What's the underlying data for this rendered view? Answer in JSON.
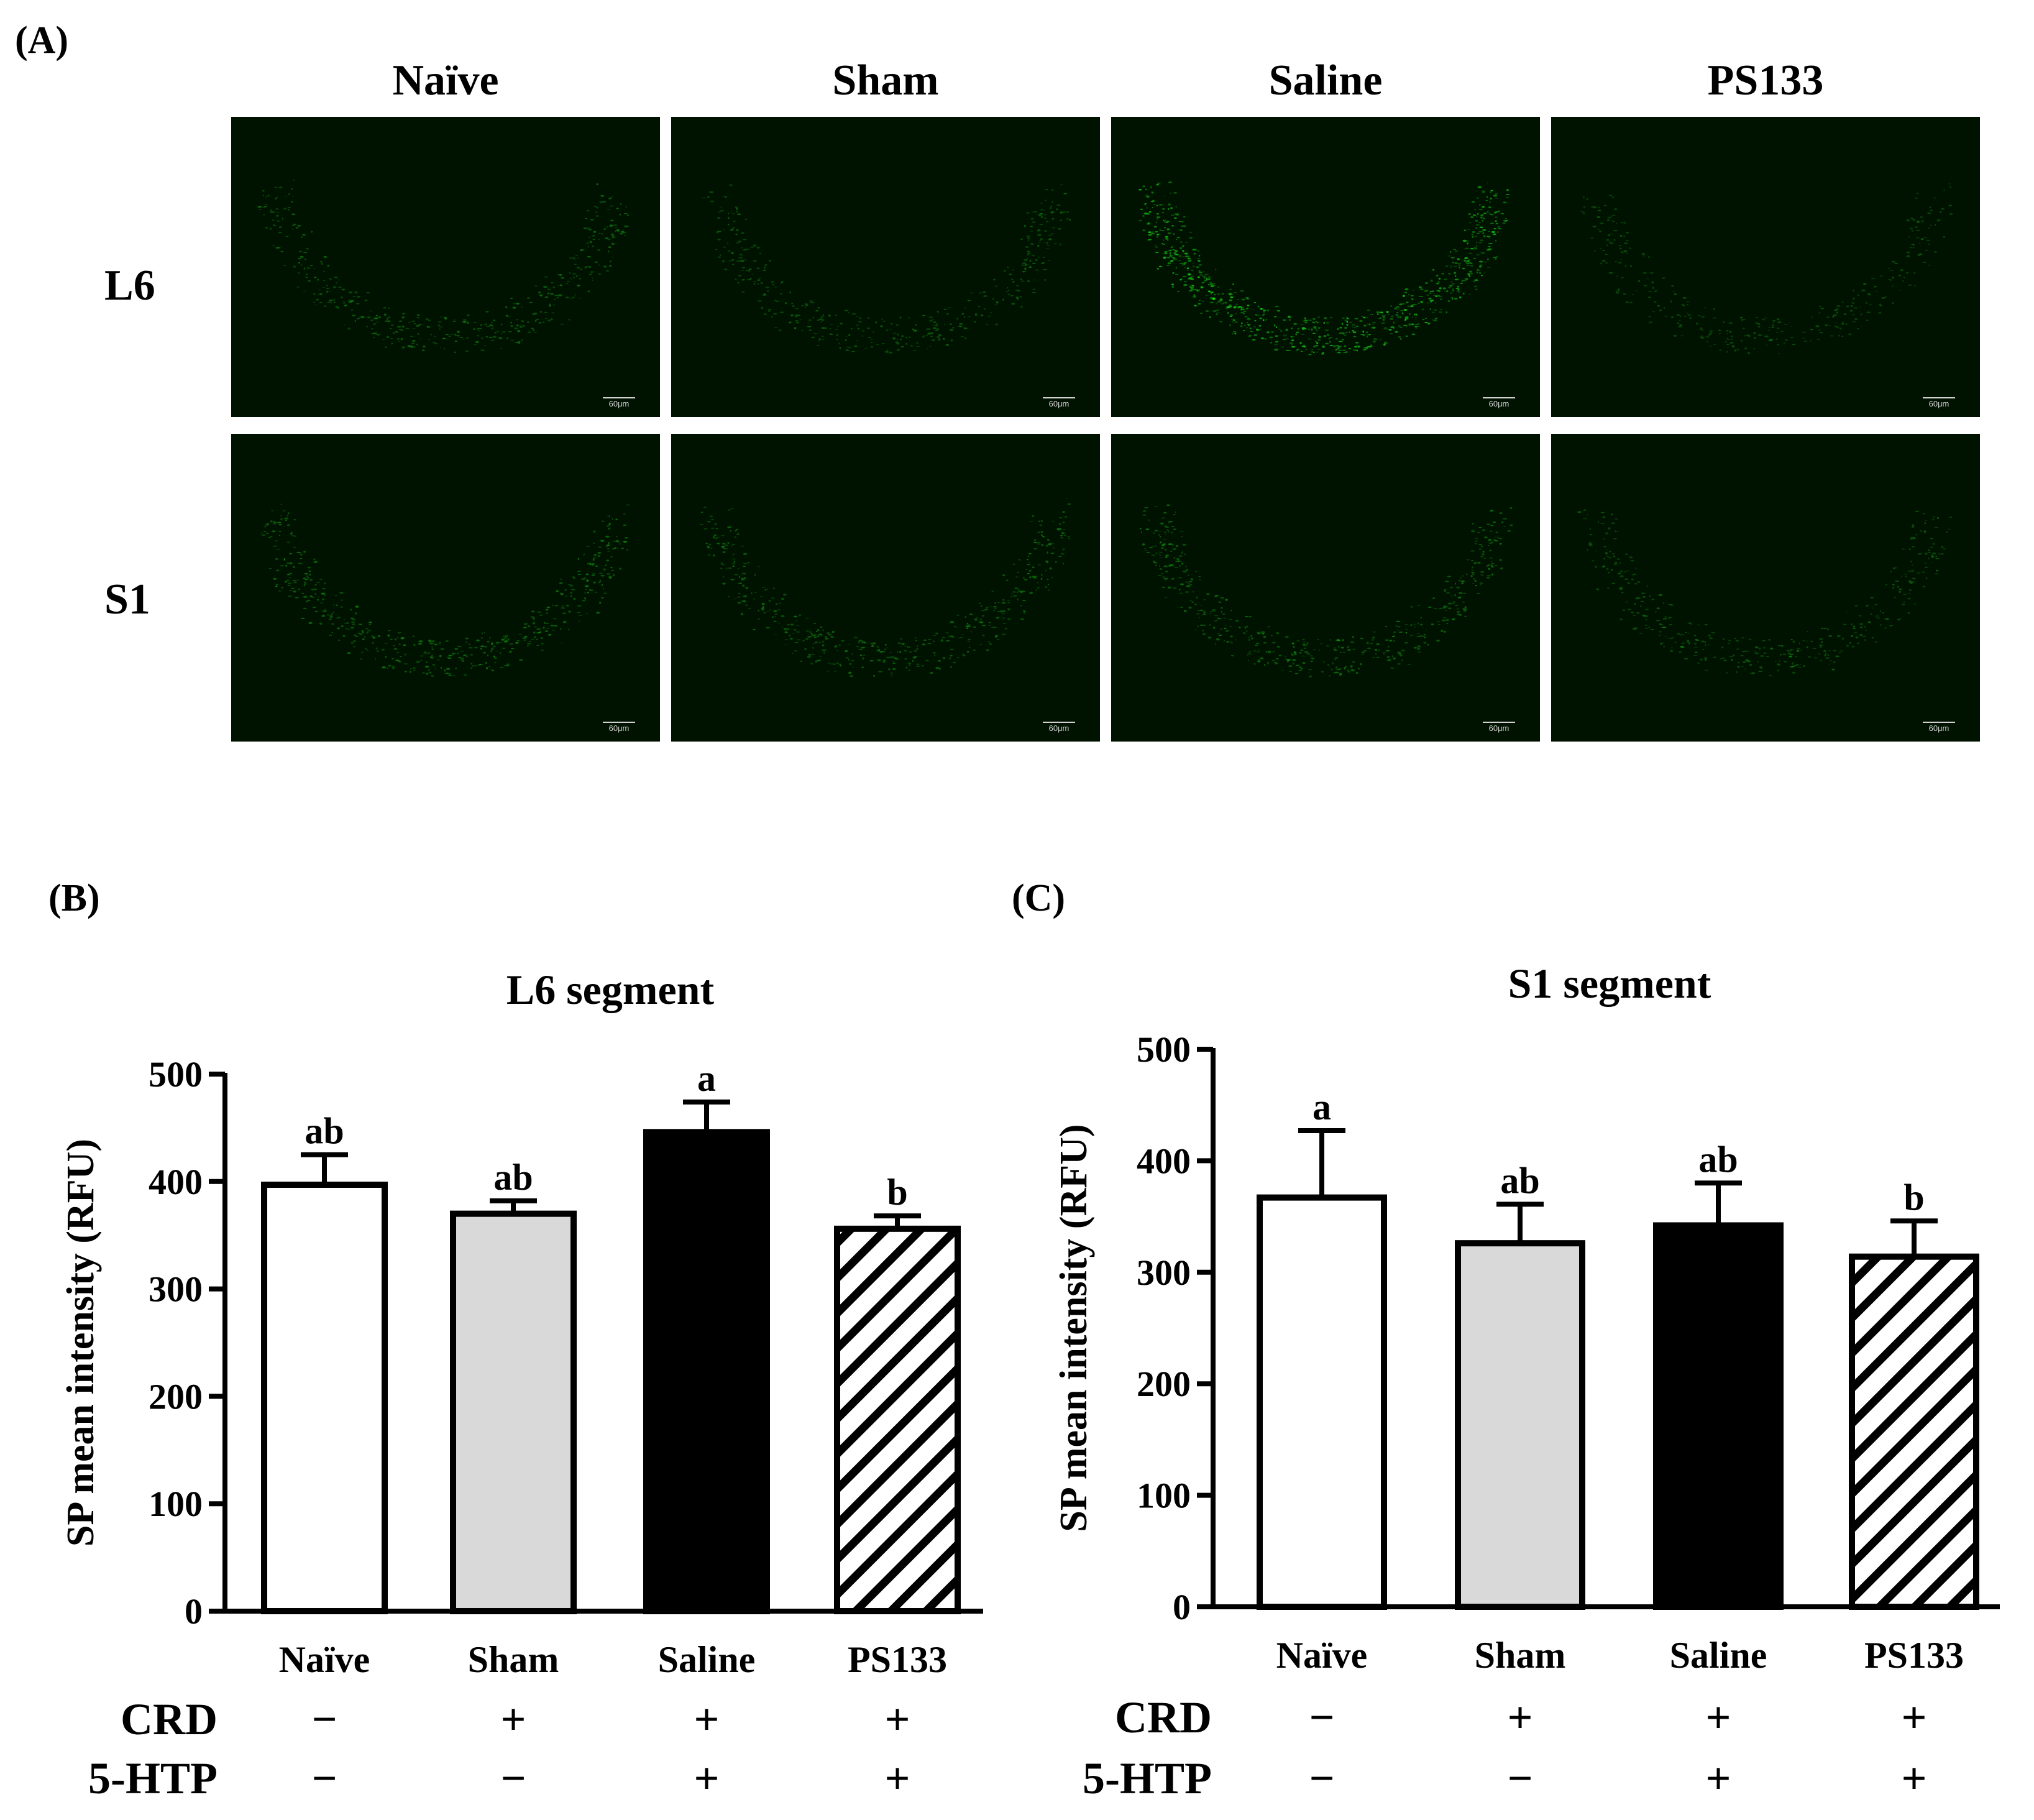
{
  "panels": {
    "a": "(A)",
    "b": "(B)",
    "c": "(C)"
  },
  "micrograph": {
    "columns": [
      "Naïve",
      "Sham",
      "Saline",
      "PS133"
    ],
    "rows": [
      "L6",
      "S1"
    ],
    "scale_bar": "60μm",
    "intensity": [
      [
        0.45,
        0.4,
        1.0,
        0.28
      ],
      [
        0.55,
        0.5,
        0.55,
        0.38
      ]
    ]
  },
  "chart_data": [
    {
      "type": "bar",
      "title": "L6 segment",
      "ylabel": "SP mean intensity (RFU)",
      "xlabel": "",
      "categories": [
        "Naïve",
        "Sham",
        "Saline",
        "PS133"
      ],
      "values": [
        397,
        370,
        446,
        356
      ],
      "errors": [
        28,
        12,
        28,
        12
      ],
      "significance": [
        "ab",
        "ab",
        "a",
        "b"
      ],
      "ylim": [
        0,
        500
      ],
      "yticks": [
        0,
        100,
        200,
        300,
        400,
        500
      ],
      "bar_fills": [
        "white",
        "lightgray",
        "black",
        "hatched"
      ],
      "treatments": [
        {
          "label": "CRD",
          "values": [
            "−",
            "+",
            "+",
            "+"
          ]
        },
        {
          "label": "5-HTP",
          "values": [
            "−",
            "−",
            "+",
            "+"
          ]
        }
      ]
    },
    {
      "type": "bar",
      "title": "S1 segment",
      "ylabel": "SP mean intensity (RFU)",
      "xlabel": "",
      "categories": [
        "Naïve",
        "Sham",
        "Saline",
        "PS133"
      ],
      "values": [
        367,
        326,
        342,
        314
      ],
      "errors": [
        60,
        35,
        38,
        32
      ],
      "significance": [
        "a",
        "ab",
        "ab",
        "b"
      ],
      "ylim": [
        0,
        500
      ],
      "yticks": [
        0,
        100,
        200,
        300,
        400,
        500
      ],
      "bar_fills": [
        "white",
        "lightgray",
        "black",
        "hatched"
      ],
      "treatments": [
        {
          "label": "CRD",
          "values": [
            "−",
            "+",
            "+",
            "+"
          ]
        },
        {
          "label": "5-HTP",
          "values": [
            "−",
            "−",
            "+",
            "+"
          ]
        }
      ]
    }
  ]
}
